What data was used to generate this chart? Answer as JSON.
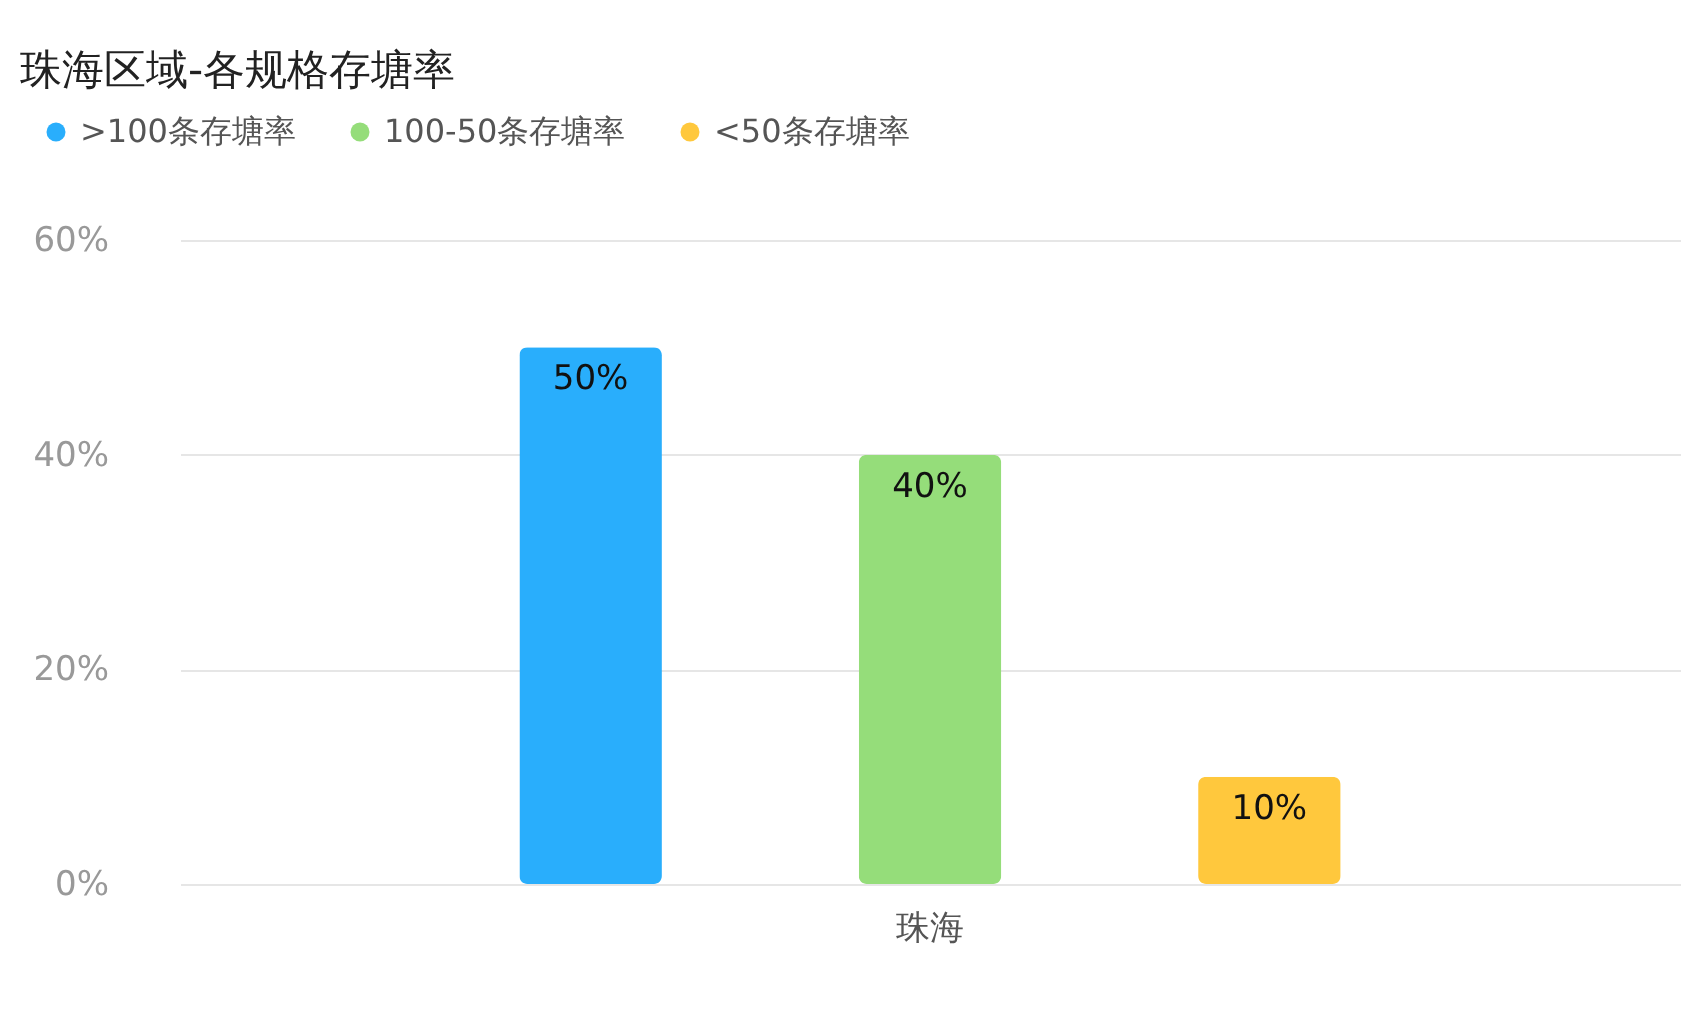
{
  "chart_data": {
    "type": "bar",
    "title": "珠海区域-各规格存塘率",
    "categories": [
      "珠海"
    ],
    "series": [
      {
        "name": ">100条存塘率",
        "color": "#29aefc",
        "values": [
          50
        ],
        "value_labels": [
          "50%"
        ]
      },
      {
        "name": "100-50条存塘率",
        "color": "#95dd7a",
        "values": [
          40
        ],
        "value_labels": [
          "40%"
        ]
      },
      {
        "name": "<50条存塘率",
        "color": "#ffc83d",
        "values": [
          10
        ],
        "value_labels": [
          "10%"
        ]
      }
    ],
    "ylim": [
      0,
      60
    ],
    "yticks": [
      {
        "value": 0,
        "label": "0%"
      },
      {
        "value": 20,
        "label": "20%"
      },
      {
        "value": 40,
        "label": "40%"
      },
      {
        "value": 60,
        "label": "60%"
      }
    ],
    "grid": "y",
    "legend": "top left"
  }
}
